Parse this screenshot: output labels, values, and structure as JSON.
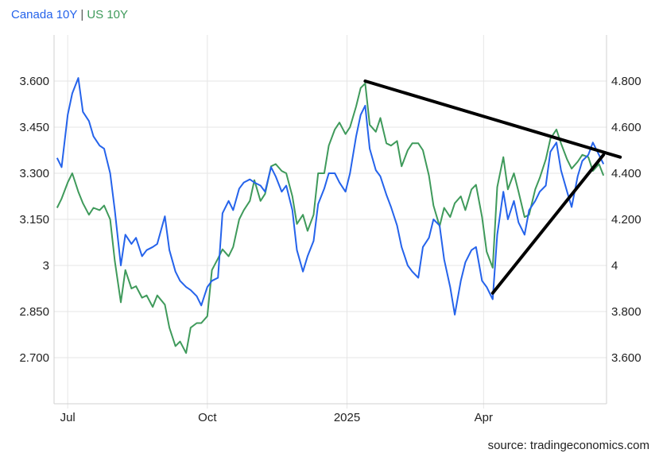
{
  "colors": {
    "canada": "#2563eb",
    "us": "#3f9a5b",
    "trend": "#000000",
    "grid": "#e6e6e6"
  },
  "legend": {
    "series1": "Canada 10Y",
    "separator": "|",
    "series2": "US 10Y"
  },
  "source": "source: tradingeconomics.com",
  "chart_data": {
    "type": "line",
    "x_tick_labels": [
      "Jul",
      "Oct",
      "2025",
      "Apr"
    ],
    "left_axis": {
      "series": "Canada 10Y",
      "ticks": [
        "3.600",
        "3.450",
        "3.300",
        "3.150",
        "3",
        "2.850",
        "2.700"
      ],
      "ylim": [
        2.55,
        3.75
      ]
    },
    "right_axis": {
      "series": "US 10Y",
      "ticks": [
        "4.800",
        "4.600",
        "4.400",
        "4.200",
        "4",
        "3.800",
        "3.600"
      ],
      "ylim": [
        3.4,
        5.0
      ]
    },
    "grid": true,
    "series": [
      {
        "name": "Canada 10Y",
        "axis": "left",
        "points": [
          [
            "2024-06-24",
            3.35
          ],
          [
            "2024-06-27",
            3.32
          ],
          [
            "2024-07-01",
            3.49
          ],
          [
            "2024-07-04",
            3.56
          ],
          [
            "2024-07-08",
            3.61
          ],
          [
            "2024-07-11",
            3.5
          ],
          [
            "2024-07-15",
            3.47
          ],
          [
            "2024-07-18",
            3.42
          ],
          [
            "2024-07-22",
            3.39
          ],
          [
            "2024-07-25",
            3.38
          ],
          [
            "2024-07-29",
            3.3
          ],
          [
            "2024-08-01",
            3.18
          ],
          [
            "2024-08-05",
            3.0
          ],
          [
            "2024-08-08",
            3.1
          ],
          [
            "2024-08-12",
            3.07
          ],
          [
            "2024-08-15",
            3.09
          ],
          [
            "2024-08-19",
            3.03
          ],
          [
            "2024-08-22",
            3.05
          ],
          [
            "2024-08-26",
            3.06
          ],
          [
            "2024-08-29",
            3.07
          ],
          [
            "2024-09-03",
            3.16
          ],
          [
            "2024-09-06",
            3.05
          ],
          [
            "2024-09-10",
            2.98
          ],
          [
            "2024-09-13",
            2.95
          ],
          [
            "2024-09-17",
            2.93
          ],
          [
            "2024-09-20",
            2.92
          ],
          [
            "2024-09-24",
            2.9
          ],
          [
            "2024-09-27",
            2.87
          ],
          [
            "2024-10-01",
            2.93
          ],
          [
            "2024-10-04",
            2.95
          ],
          [
            "2024-10-08",
            2.96
          ],
          [
            "2024-10-11",
            3.17
          ],
          [
            "2024-10-15",
            3.21
          ],
          [
            "2024-10-18",
            3.18
          ],
          [
            "2024-10-22",
            3.25
          ],
          [
            "2024-10-25",
            3.27
          ],
          [
            "2024-10-29",
            3.28
          ],
          [
            "2024-11-01",
            3.27
          ],
          [
            "2024-11-05",
            3.26
          ],
          [
            "2024-11-08",
            3.24
          ],
          [
            "2024-11-12",
            3.32
          ],
          [
            "2024-11-15",
            3.29
          ],
          [
            "2024-11-19",
            3.24
          ],
          [
            "2024-11-22",
            3.26
          ],
          [
            "2024-11-26",
            3.18
          ],
          [
            "2024-11-29",
            3.05
          ],
          [
            "2024-12-03",
            2.98
          ],
          [
            "2024-12-06",
            3.03
          ],
          [
            "2024-12-10",
            3.08
          ],
          [
            "2024-12-13",
            3.2
          ],
          [
            "2024-12-17",
            3.25
          ],
          [
            "2024-12-20",
            3.3
          ],
          [
            "2024-12-24",
            3.3
          ],
          [
            "2024-12-27",
            3.27
          ],
          [
            "2024-12-31",
            3.24
          ],
          [
            "2025-01-03",
            3.3
          ],
          [
            "2025-01-07",
            3.42
          ],
          [
            "2025-01-10",
            3.49
          ],
          [
            "2025-01-13",
            3.52
          ],
          [
            "2025-01-16",
            3.38
          ],
          [
            "2025-01-20",
            3.31
          ],
          [
            "2025-01-23",
            3.29
          ],
          [
            "2025-01-27",
            3.23
          ],
          [
            "2025-01-30",
            3.19
          ],
          [
            "2025-02-03",
            3.13
          ],
          [
            "2025-02-06",
            3.06
          ],
          [
            "2025-02-10",
            3.0
          ],
          [
            "2025-02-13",
            2.98
          ],
          [
            "2025-02-17",
            2.96
          ],
          [
            "2025-02-20",
            3.06
          ],
          [
            "2025-02-24",
            3.09
          ],
          [
            "2025-02-27",
            3.15
          ],
          [
            "2025-03-03",
            3.13
          ],
          [
            "2025-03-06",
            3.02
          ],
          [
            "2025-03-10",
            2.93
          ],
          [
            "2025-03-13",
            2.84
          ],
          [
            "2025-03-17",
            2.95
          ],
          [
            "2025-03-20",
            3.01
          ],
          [
            "2025-03-24",
            3.05
          ],
          [
            "2025-03-27",
            3.06
          ],
          [
            "2025-03-31",
            2.95
          ],
          [
            "2025-04-03",
            2.93
          ],
          [
            "2025-04-07",
            2.89
          ],
          [
            "2025-04-10",
            3.1
          ],
          [
            "2025-04-14",
            3.24
          ],
          [
            "2025-04-17",
            3.15
          ],
          [
            "2025-04-21",
            3.21
          ],
          [
            "2025-04-24",
            3.14
          ],
          [
            "2025-04-28",
            3.1
          ],
          [
            "2025-05-01",
            3.18
          ],
          [
            "2025-05-05",
            3.21
          ],
          [
            "2025-05-08",
            3.24
          ],
          [
            "2025-05-12",
            3.26
          ],
          [
            "2025-05-15",
            3.37
          ],
          [
            "2025-05-19",
            3.4
          ],
          [
            "2025-05-22",
            3.31
          ],
          [
            "2025-05-26",
            3.24
          ],
          [
            "2025-05-29",
            3.19
          ],
          [
            "2025-06-02",
            3.29
          ],
          [
            "2025-06-05",
            3.34
          ],
          [
            "2025-06-09",
            3.36
          ],
          [
            "2025-06-12",
            3.4
          ],
          [
            "2025-06-16",
            3.36
          ],
          [
            "2025-06-19",
            3.33
          ]
        ]
      },
      {
        "name": "US 10Y",
        "axis": "right",
        "points": [
          [
            "2024-06-24",
            4.25
          ],
          [
            "2024-06-27",
            4.29
          ],
          [
            "2024-07-01",
            4.36
          ],
          [
            "2024-07-04",
            4.4
          ],
          [
            "2024-07-08",
            4.32
          ],
          [
            "2024-07-11",
            4.27
          ],
          [
            "2024-07-15",
            4.22
          ],
          [
            "2024-07-18",
            4.25
          ],
          [
            "2024-07-22",
            4.24
          ],
          [
            "2024-07-25",
            4.26
          ],
          [
            "2024-07-29",
            4.2
          ],
          [
            "2024-08-01",
            4.02
          ],
          [
            "2024-08-05",
            3.84
          ],
          [
            "2024-08-08",
            3.98
          ],
          [
            "2024-08-12",
            3.9
          ],
          [
            "2024-08-15",
            3.91
          ],
          [
            "2024-08-19",
            3.86
          ],
          [
            "2024-08-22",
            3.87
          ],
          [
            "2024-08-26",
            3.82
          ],
          [
            "2024-08-29",
            3.87
          ],
          [
            "2024-09-03",
            3.83
          ],
          [
            "2024-09-06",
            3.73
          ],
          [
            "2024-09-10",
            3.65
          ],
          [
            "2024-09-13",
            3.67
          ],
          [
            "2024-09-17",
            3.62
          ],
          [
            "2024-09-20",
            3.73
          ],
          [
            "2024-09-24",
            3.75
          ],
          [
            "2024-09-27",
            3.75
          ],
          [
            "2024-10-01",
            3.78
          ],
          [
            "2024-10-04",
            3.98
          ],
          [
            "2024-10-08",
            4.03
          ],
          [
            "2024-10-11",
            4.07
          ],
          [
            "2024-10-15",
            4.04
          ],
          [
            "2024-10-18",
            4.08
          ],
          [
            "2024-10-22",
            4.2
          ],
          [
            "2024-10-25",
            4.24
          ],
          [
            "2024-10-29",
            4.28
          ],
          [
            "2024-11-01",
            4.37
          ],
          [
            "2024-11-05",
            4.28
          ],
          [
            "2024-11-08",
            4.31
          ],
          [
            "2024-11-12",
            4.43
          ],
          [
            "2024-11-15",
            4.44
          ],
          [
            "2024-11-19",
            4.41
          ],
          [
            "2024-11-22",
            4.4
          ],
          [
            "2024-11-26",
            4.3
          ],
          [
            "2024-11-29",
            4.18
          ],
          [
            "2024-12-03",
            4.22
          ],
          [
            "2024-12-06",
            4.15
          ],
          [
            "2024-12-10",
            4.22
          ],
          [
            "2024-12-13",
            4.4
          ],
          [
            "2024-12-17",
            4.4
          ],
          [
            "2024-12-20",
            4.52
          ],
          [
            "2024-12-24",
            4.59
          ],
          [
            "2024-12-27",
            4.62
          ],
          [
            "2024-12-31",
            4.57
          ],
          [
            "2025-01-03",
            4.6
          ],
          [
            "2025-01-07",
            4.69
          ],
          [
            "2025-01-10",
            4.77
          ],
          [
            "2025-01-13",
            4.79
          ],
          [
            "2025-01-16",
            4.61
          ],
          [
            "2025-01-20",
            4.58
          ],
          [
            "2025-01-23",
            4.64
          ],
          [
            "2025-01-27",
            4.53
          ],
          [
            "2025-01-30",
            4.52
          ],
          [
            "2025-02-03",
            4.54
          ],
          [
            "2025-02-06",
            4.43
          ],
          [
            "2025-02-10",
            4.5
          ],
          [
            "2025-02-13",
            4.53
          ],
          [
            "2025-02-17",
            4.53
          ],
          [
            "2025-02-20",
            4.5
          ],
          [
            "2025-02-24",
            4.39
          ],
          [
            "2025-02-27",
            4.26
          ],
          [
            "2025-03-03",
            4.17
          ],
          [
            "2025-03-06",
            4.25
          ],
          [
            "2025-03-10",
            4.21
          ],
          [
            "2025-03-13",
            4.27
          ],
          [
            "2025-03-17",
            4.3
          ],
          [
            "2025-03-20",
            4.24
          ],
          [
            "2025-03-24",
            4.33
          ],
          [
            "2025-03-27",
            4.35
          ],
          [
            "2025-03-31",
            4.21
          ],
          [
            "2025-04-03",
            4.06
          ],
          [
            "2025-04-07",
            3.99
          ],
          [
            "2025-04-10",
            4.34
          ],
          [
            "2025-04-14",
            4.47
          ],
          [
            "2025-04-17",
            4.33
          ],
          [
            "2025-04-21",
            4.4
          ],
          [
            "2025-04-24",
            4.32
          ],
          [
            "2025-04-28",
            4.21
          ],
          [
            "2025-05-01",
            4.22
          ],
          [
            "2025-05-05",
            4.33
          ],
          [
            "2025-05-08",
            4.38
          ],
          [
            "2025-05-12",
            4.46
          ],
          [
            "2025-05-15",
            4.55
          ],
          [
            "2025-05-19",
            4.59
          ],
          [
            "2025-05-22",
            4.53
          ],
          [
            "2025-05-26",
            4.46
          ],
          [
            "2025-05-29",
            4.42
          ],
          [
            "2025-06-02",
            4.45
          ],
          [
            "2025-06-05",
            4.48
          ],
          [
            "2025-06-09",
            4.47
          ],
          [
            "2025-06-12",
            4.41
          ],
          [
            "2025-06-16",
            4.44
          ],
          [
            "2025-06-19",
            4.39
          ]
        ]
      }
    ],
    "annotations": [
      {
        "type": "trendline",
        "from": [
          "2025-01-13",
          4.8
        ],
        "to": [
          "2025-06-30",
          4.47
        ],
        "axis": "right"
      },
      {
        "type": "trendline",
        "from": [
          "2025-04-07",
          3.88
        ],
        "to": [
          "2025-06-19",
          4.48
        ],
        "axis": "right"
      }
    ]
  }
}
